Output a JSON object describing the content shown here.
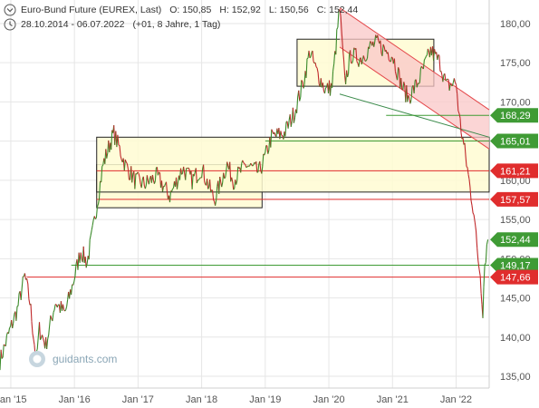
{
  "header": {
    "instrument": "Euro-Bund Future (EUREX, Last)",
    "open": "O: 150,85",
    "high": "H: 152,92",
    "low": "L: 150,56",
    "close": "C: 152,44",
    "range": "28.10.2014 - 06.07.2022",
    "period": "(+01, 8 Jahre, 1 Tag)"
  },
  "watermark": "guidants.com",
  "colors": {
    "up": "#3a8a2a",
    "down": "#c0282a",
    "green_tag": "#3f9b35",
    "red_tag": "#e02d2d",
    "zone_fill": "#fffcd2",
    "channel_fill": "#f9c7c7",
    "grid": "#e6e6e6"
  },
  "chart_data": {
    "type": "line",
    "title": "",
    "xlabel": "",
    "ylabel": "",
    "ylim": [
      133.5,
      183
    ],
    "yticks": [
      {
        "v": 135,
        "label": "135,00"
      },
      {
        "v": 140,
        "label": "140,00"
      },
      {
        "v": 145,
        "label": "145,00"
      },
      {
        "v": 150,
        "label": "150,00"
      },
      {
        "v": 155,
        "label": "155,00"
      },
      {
        "v": 160,
        "label": "160,00"
      },
      {
        "v": 165,
        "label": "165,00"
      },
      {
        "v": 170,
        "label": "170,00"
      },
      {
        "v": 175,
        "label": "175,00"
      },
      {
        "v": 180,
        "label": "180,00"
      }
    ],
    "xrange": [
      2014.83,
      2022.52
    ],
    "xticks": [
      {
        "t": 2015.0,
        "label": "Jan '15"
      },
      {
        "t": 2016.0,
        "label": "Jan '16"
      },
      {
        "t": 2017.0,
        "label": "Jan '17"
      },
      {
        "t": 2018.0,
        "label": "Jan '18"
      },
      {
        "t": 2019.0,
        "label": "Jan '19"
      },
      {
        "t": 2020.0,
        "label": "Jan '20"
      },
      {
        "t": 2021.0,
        "label": "Jan '21"
      },
      {
        "t": 2022.0,
        "label": "Jan '22"
      }
    ],
    "series": [
      {
        "values": [
          [
            2014.83,
            137.0
          ],
          [
            2014.95,
            140.0
          ],
          [
            2015.1,
            143.5
          ],
          [
            2015.22,
            147.8
          ],
          [
            2015.3,
            144.5
          ],
          [
            2015.4,
            137.0
          ],
          [
            2015.45,
            141.0
          ],
          [
            2015.55,
            139.0
          ],
          [
            2015.7,
            144.5
          ],
          [
            2015.85,
            143.0
          ],
          [
            2015.95,
            146.0
          ],
          [
            2016.1,
            151.0
          ],
          [
            2016.2,
            149.5
          ],
          [
            2016.3,
            154.0
          ],
          [
            2016.45,
            162.0
          ],
          [
            2016.55,
            164.5
          ],
          [
            2016.62,
            166.0
          ],
          [
            2016.8,
            162.0
          ],
          [
            2016.95,
            160.0
          ],
          [
            2017.1,
            159.5
          ],
          [
            2017.3,
            160.5
          ],
          [
            2017.5,
            158.0
          ],
          [
            2017.7,
            161.5
          ],
          [
            2017.85,
            160.0
          ],
          [
            2018.0,
            161.5
          ],
          [
            2018.2,
            157.5
          ],
          [
            2018.4,
            162.0
          ],
          [
            2018.5,
            160.0
          ],
          [
            2018.7,
            162.0
          ],
          [
            2018.9,
            161.0
          ],
          [
            2019.0,
            163.0
          ],
          [
            2019.1,
            165.5
          ],
          [
            2019.3,
            166.0
          ],
          [
            2019.45,
            168.5
          ],
          [
            2019.6,
            172.5
          ],
          [
            2019.7,
            176.5
          ],
          [
            2019.8,
            174.0
          ],
          [
            2019.95,
            171.5
          ],
          [
            2020.05,
            172.0
          ],
          [
            2020.17,
            182.0
          ],
          [
            2020.25,
            172.5
          ],
          [
            2020.35,
            176.0
          ],
          [
            2020.5,
            175.5
          ],
          [
            2020.65,
            177.0
          ],
          [
            2020.75,
            177.5
          ],
          [
            2020.9,
            176.5
          ],
          [
            2021.0,
            176.0
          ],
          [
            2021.15,
            172.0
          ],
          [
            2021.25,
            170.5
          ],
          [
            2021.4,
            172.5
          ],
          [
            2021.6,
            176.5
          ],
          [
            2021.75,
            175.0
          ],
          [
            2021.85,
            172.0
          ],
          [
            2022.0,
            172.5
          ],
          [
            2022.05,
            168.0
          ],
          [
            2022.15,
            163.0
          ],
          [
            2022.22,
            159.0
          ],
          [
            2022.28,
            156.0
          ],
          [
            2022.33,
            151.0
          ],
          [
            2022.38,
            148.0
          ],
          [
            2022.42,
            143.5
          ],
          [
            2022.45,
            149.5
          ],
          [
            2022.5,
            152.44
          ]
        ]
      }
    ],
    "zones": [
      {
        "x0": 2016.35,
        "x1": 2018.95,
        "y0": 156.5,
        "y1": 162.0
      },
      {
        "x0": 2019.5,
        "x1": 2021.65,
        "y0": 172.0,
        "y1": 178.0
      },
      {
        "x0": 2016.35,
        "x1": 2022.52,
        "y0": 158.5,
        "y1": 165.5
      }
    ],
    "channel": {
      "upper": [
        [
          2020.17,
          182.0
        ],
        [
          2022.52,
          169.0
        ]
      ],
      "lower": [
        [
          2020.17,
          177.0
        ],
        [
          2022.52,
          164.0
        ]
      ]
    },
    "trendline": [
      [
        2020.17,
        171.0
      ],
      [
        2022.52,
        165.5
      ]
    ],
    "levels": [
      {
        "value": 168.29,
        "label": "168,29",
        "color": "green",
        "x0": 2020.9
      },
      {
        "value": 165.01,
        "label": "165,01",
        "color": "green",
        "x0": 2019.0
      },
      {
        "value": 161.21,
        "label": "161,21",
        "color": "red",
        "x0": 2016.35
      },
      {
        "value": 157.57,
        "label": "157,57",
        "color": "red",
        "x0": 2016.35
      },
      {
        "value": 152.44,
        "label": "152,44",
        "color": "green",
        "x0": null
      },
      {
        "value": 149.17,
        "label": "149,17",
        "color": "green",
        "x0": 2015.95
      },
      {
        "value": 147.66,
        "label": "147,66",
        "color": "red",
        "x0": 2015.25
      }
    ]
  }
}
